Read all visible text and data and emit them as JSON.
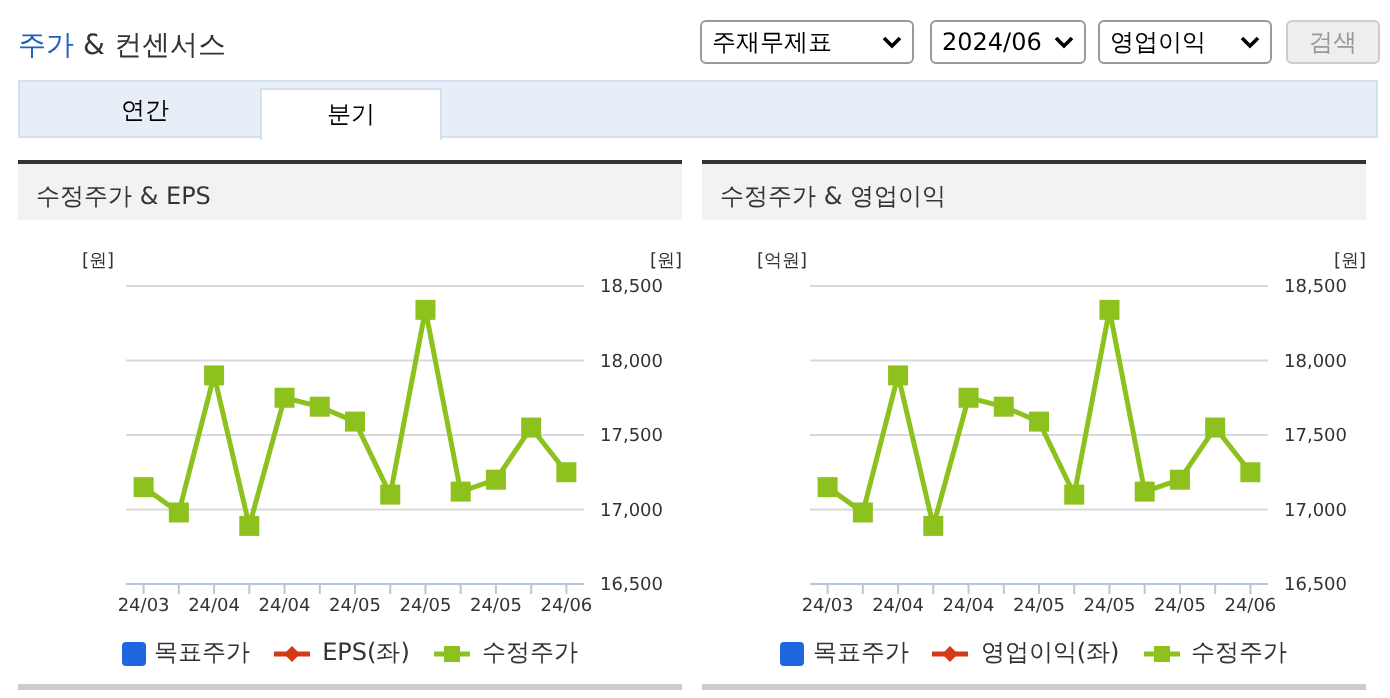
{
  "chart_data": [
    {
      "type": "other",
      "title": "주가 & 컨센서스",
      "annotations": [
        "주재무제표",
        "2024/06",
        "영업이익",
        "검색",
        "연간",
        "분기"
      ]
    },
    {
      "type": "line",
      "title": "수정주가 & EPS",
      "ylabel": "[원]",
      "y2label": "[원]",
      "categories": [
        "24/03",
        null,
        "24/04",
        null,
        "24/04",
        null,
        "24/05",
        null,
        "24/05",
        null,
        "24/05",
        null,
        "24/06"
      ],
      "series": [
        {
          "name": "목표주가",
          "type": "bar",
          "color": "#1f66e0",
          "values": [
            null,
            null,
            null,
            null,
            null,
            null,
            null,
            null,
            null,
            null,
            null,
            null,
            null
          ]
        },
        {
          "name": "EPS(좌)",
          "type": "line",
          "marker": "diamond",
          "color": "#d33a15",
          "values": [
            null,
            null,
            null,
            null,
            null,
            null,
            null,
            null,
            null,
            null,
            null,
            null,
            null
          ]
        },
        {
          "name": "수정주가",
          "type": "line",
          "marker": "square",
          "axis": "y2",
          "color": "#8cc11e",
          "values": [
            17150,
            16980,
            17900,
            16890,
            17750,
            17690,
            17590,
            17100,
            18340,
            17120,
            17200,
            17550,
            17250
          ]
        }
      ],
      "y2lim": [
        16500,
        18500
      ],
      "y2ticks": [
        {
          "value": 16500,
          "label": "16,500"
        },
        {
          "value": 17000,
          "label": "17,000"
        },
        {
          "value": 17500,
          "label": "17,500"
        },
        {
          "value": 18000,
          "label": "18,000"
        },
        {
          "value": 18500,
          "label": "18,500"
        }
      ],
      "grid": "y",
      "legend": "bottom",
      "line_style": "solid"
    },
    {
      "type": "line",
      "title": "수정주가 & 영업이익",
      "ylabel": "[억원]",
      "y2label": "[원]",
      "categories": [
        "24/03",
        null,
        "24/04",
        null,
        "24/04",
        null,
        "24/05",
        null,
        "24/05",
        null,
        "24/05",
        null,
        "24/06"
      ],
      "series": [
        {
          "name": "목표주가",
          "type": "bar",
          "color": "#1f66e0",
          "values": [
            null,
            null,
            null,
            null,
            null,
            null,
            null,
            null,
            null,
            null,
            null,
            null,
            null
          ]
        },
        {
          "name": "영업이익(좌)",
          "type": "line",
          "marker": "diamond",
          "color": "#d33a15",
          "values": [
            null,
            null,
            null,
            null,
            null,
            null,
            null,
            null,
            null,
            null,
            null,
            null,
            null
          ]
        },
        {
          "name": "수정주가",
          "type": "line",
          "marker": "square",
          "axis": "y2",
          "color": "#8cc11e",
          "values": [
            17150,
            16980,
            17900,
            16890,
            17750,
            17690,
            17590,
            17100,
            18340,
            17120,
            17200,
            17550,
            17250
          ]
        }
      ],
      "y2lim": [
        16500,
        18500
      ],
      "y2ticks": [
        {
          "value": 16500,
          "label": "16,500"
        },
        {
          "value": 17000,
          "label": "17,000"
        },
        {
          "value": 17500,
          "label": "17,500"
        },
        {
          "value": 18000,
          "label": "18,000"
        },
        {
          "value": 18500,
          "label": "18,500"
        }
      ],
      "grid": "y",
      "legend": "bottom",
      "line_style": "solid"
    }
  ]
}
